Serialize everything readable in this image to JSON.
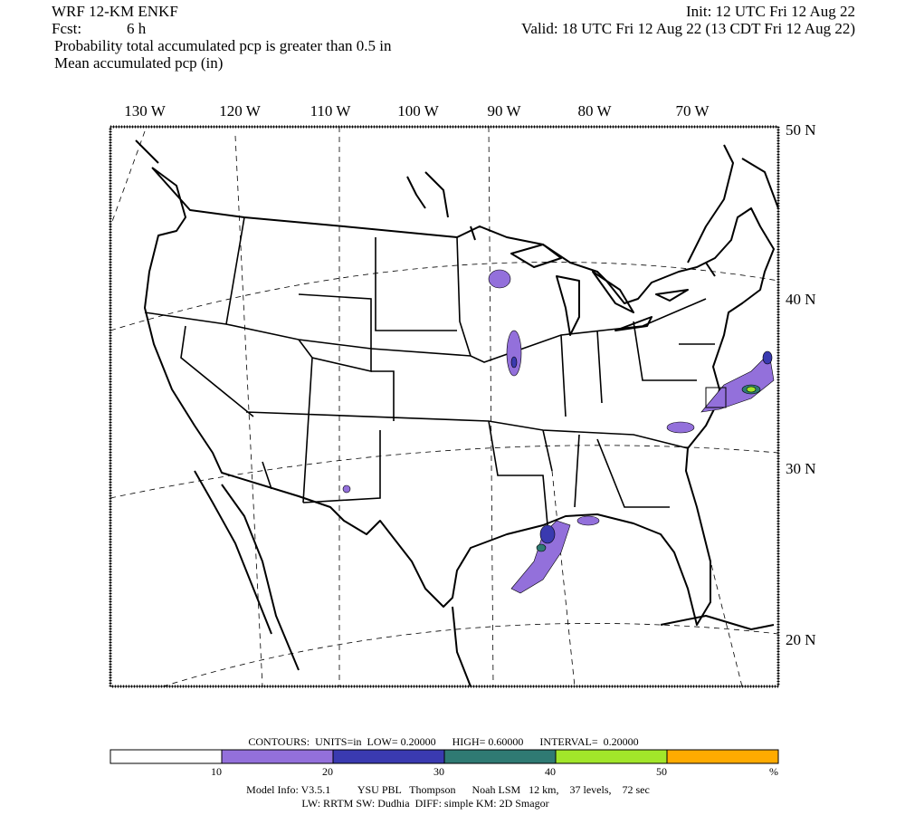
{
  "header": {
    "model": "WRF 12-KM ENKF",
    "init": "Init: 12 UTC Fri 12 Aug 22",
    "fcst_label": "Fcst:",
    "fcst_value": "6 h",
    "valid": "Valid: 18 UTC Fri 12 Aug 22 (13 CDT Fri 12 Aug 22)",
    "line3": "Probability total accumulated pcp is greater than 0.5 in",
    "line4": "Mean accumulated pcp (in)"
  },
  "map": {
    "lon_labels": [
      "130 W",
      "120 W",
      "110 W",
      "100 W",
      "90 W",
      "80 W",
      "70 W"
    ],
    "lat_labels": [
      "50 N",
      "40 N",
      "30 N",
      "20 N"
    ]
  },
  "legend": {
    "contours": "CONTOURS:  UNITS=in  LOW= 0.20000      HIGH= 0.60000      INTERVAL=  0.20000",
    "colors": [
      "#ffffff",
      "#9370db",
      "#3a3ab0",
      "#2f7a73",
      "#a2e62a",
      "#ffab00"
    ],
    "labels": [
      "10",
      "20",
      "30",
      "40",
      "50"
    ],
    "unit": "%"
  },
  "footer": {
    "line1": "Model Info: V3.5.1          YSU PBL   Thompson      Noah LSM   12 km,    37 levels,    72 sec",
    "line2": "LW: RRTM SW: Dudhia  DIFF: simple KM: 2D Smagor"
  }
}
